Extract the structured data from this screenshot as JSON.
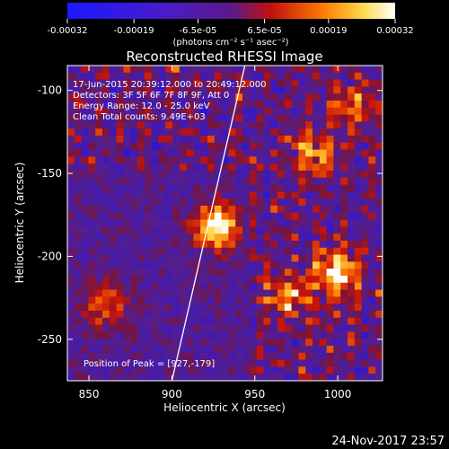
{
  "chart_data": {
    "type": "heatmap",
    "title": "Reconstructed RHESSI Image",
    "xlabel": "Heliocentric X (arcsec)",
    "ylabel": "Heliocentric Y (arcsec)",
    "xlim": [
      837,
      1027
    ],
    "ylim": [
      -275,
      -85
    ],
    "x_ticks": [
      850,
      900,
      950,
      1000
    ],
    "y_ticks": [
      -100,
      -150,
      -200,
      -250
    ],
    "colorbar": {
      "min": -0.00032,
      "max": 0.00032,
      "tick_values": [
        -0.00032,
        -0.00019,
        -6.5e-05,
        6.5e-05,
        0.00019,
        0.00032
      ],
      "tick_labels": [
        "-0.00032",
        "-0.00019",
        "-6.5e-05",
        "6.5e-05",
        "0.00019",
        "0.00032"
      ],
      "units": "(photons cm⁻² s⁻¹ asec⁻²)",
      "colormap": "blue-purple-red-yellow-white"
    },
    "annotations": {
      "time": "17-Jun-2015 20:39:12.000 to 20:49:12.000",
      "detectors": "Detectors: 3F 5F 6F 7F 8F 9F, Att 0",
      "energy": "Energy Range: 12.0 - 25.0 keV",
      "clean": "Clean    Total counts: 9.49E+03",
      "peak": "Position of Peak = [927,-179]"
    },
    "peak_position": [
      927,
      -179
    ],
    "limb_line": [
      [
        900,
        -275
      ],
      [
        944,
        -85
      ]
    ],
    "sources": [
      {
        "x": 927,
        "y": -182,
        "intensity": 1.0
      },
      {
        "x": 1000,
        "y": -210,
        "intensity": 0.85
      },
      {
        "x": 970,
        "y": -225,
        "intensity": 0.6
      },
      {
        "x": 985,
        "y": -140,
        "intensity": 0.55
      },
      {
        "x": 860,
        "y": -230,
        "intensity": 0.5
      },
      {
        "x": 1010,
        "y": -110,
        "intensity": 0.5
      }
    ]
  },
  "footer": {
    "timestamp": "24-Nov-2017 23:57"
  }
}
